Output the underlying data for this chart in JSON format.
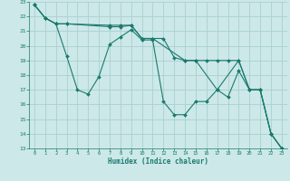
{
  "xlabel": "Humidex (Indice chaleur)",
  "bg_color": "#cce8e8",
  "grid_color": "#aad0d0",
  "line_color": "#1a7a6e",
  "xlim": [
    -0.5,
    23.5
  ],
  "ylim": [
    13,
    23
  ],
  "xticks": [
    0,
    1,
    2,
    3,
    4,
    5,
    6,
    7,
    8,
    9,
    10,
    11,
    12,
    13,
    14,
    15,
    16,
    17,
    18,
    19,
    20,
    21,
    22,
    23
  ],
  "yticks": [
    13,
    14,
    15,
    16,
    17,
    18,
    19,
    20,
    21,
    22,
    23
  ],
  "lines": [
    {
      "x": [
        0,
        1,
        2,
        3,
        4,
        5,
        6,
        7,
        8,
        9,
        10,
        11,
        12,
        13,
        14,
        15,
        16,
        17,
        18,
        19,
        20,
        21,
        22,
        23
      ],
      "y": [
        22.8,
        21.9,
        21.5,
        19.3,
        17.0,
        16.7,
        17.9,
        20.1,
        20.6,
        21.1,
        20.4,
        20.4,
        16.2,
        15.3,
        15.3,
        16.2,
        16.2,
        17.0,
        16.5,
        18.3,
        17.0,
        17.0,
        14.0,
        13.0
      ]
    },
    {
      "x": [
        0,
        1,
        2,
        3,
        7,
        8,
        9,
        10,
        11,
        14,
        15,
        17,
        19,
        20,
        21,
        22,
        23
      ],
      "y": [
        22.8,
        21.9,
        21.5,
        21.5,
        21.3,
        21.3,
        21.4,
        20.5,
        20.5,
        19.0,
        19.0,
        17.0,
        19.0,
        17.0,
        17.0,
        14.0,
        13.0
      ]
    },
    {
      "x": [
        0,
        1,
        2,
        3,
        7,
        8,
        9,
        10,
        11,
        12,
        13,
        14,
        15,
        16,
        17,
        18,
        19,
        20,
        21,
        22,
        23
      ],
      "y": [
        22.8,
        21.9,
        21.5,
        21.5,
        21.4,
        21.4,
        21.4,
        20.5,
        20.5,
        20.5,
        19.2,
        19.0,
        19.0,
        19.0,
        19.0,
        19.0,
        19.0,
        17.0,
        17.0,
        14.0,
        13.0
      ]
    }
  ]
}
